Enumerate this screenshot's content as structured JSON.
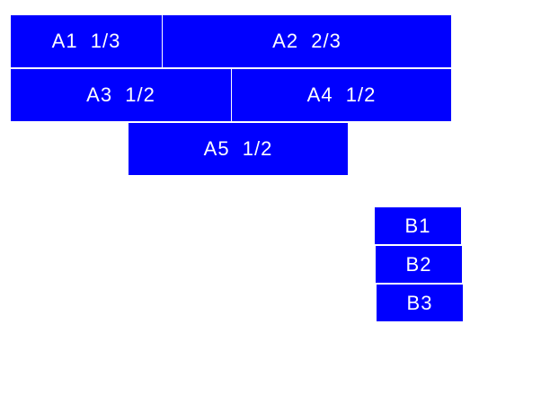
{
  "color": "#0000ff",
  "group_a": [
    {
      "label": "A1  1/3"
    },
    {
      "label": "A2  2/3"
    },
    {
      "label": "A3  1/2"
    },
    {
      "label": "A4  1/2"
    },
    {
      "label": "A5  1/2"
    }
  ],
  "group_b": [
    {
      "label": "B1"
    },
    {
      "label": "B2"
    },
    {
      "label": "B3"
    }
  ]
}
